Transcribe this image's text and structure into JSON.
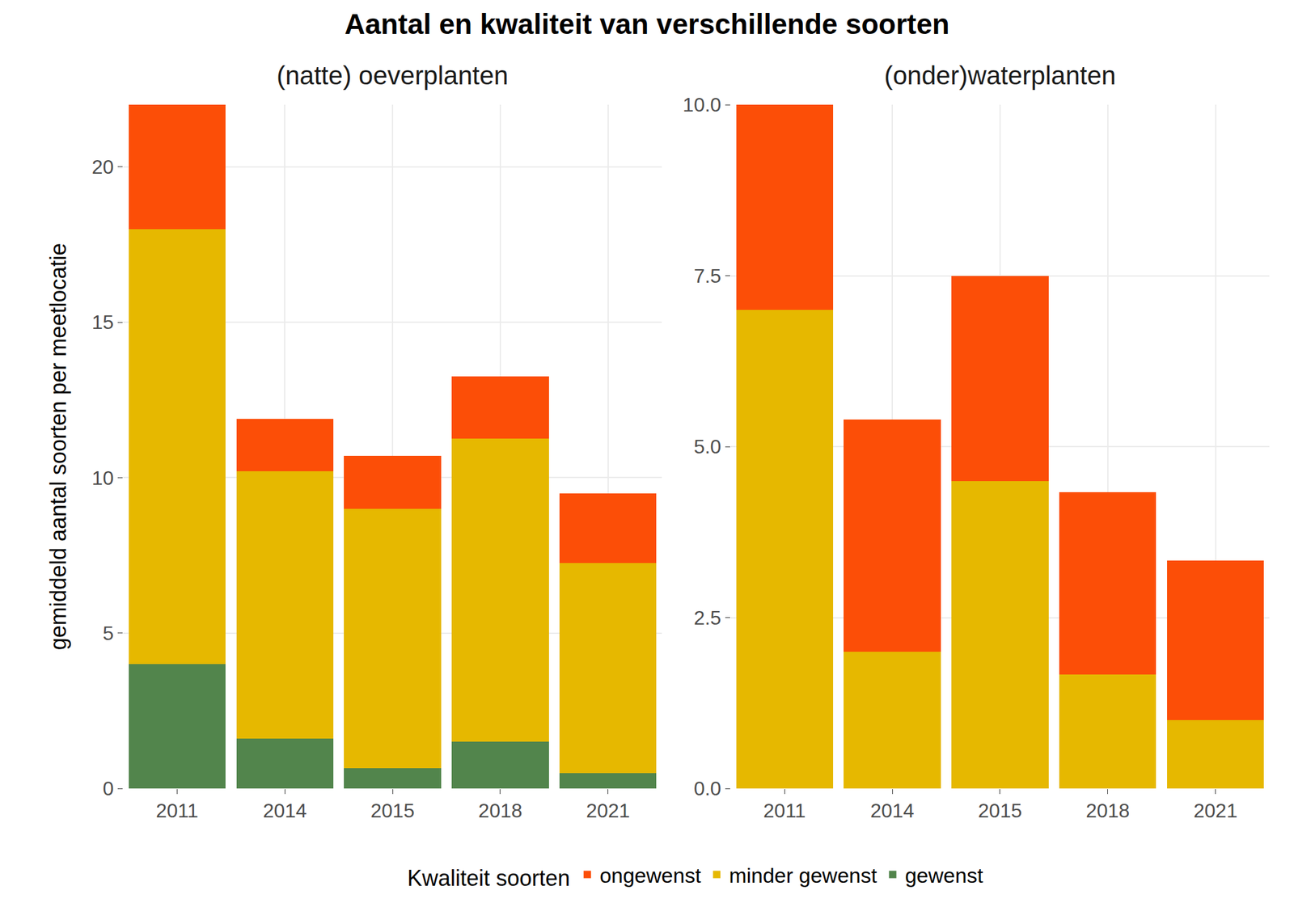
{
  "title": "Aantal en kwaliteit van verschillende soorten",
  "y_label": "gemiddeld aantal soorten per meetlocatie",
  "legend_title": "Kwaliteit soorten",
  "chart_data": [
    {
      "type": "bar",
      "title": "(natte) oeverplanten",
      "stacked": true,
      "grid": true,
      "legend": "bottom",
      "categories": [
        "2011",
        "2014",
        "2015",
        "2018",
        "2021"
      ],
      "ylim": [
        0,
        22
      ],
      "yticks": [
        0,
        5,
        10,
        15,
        20
      ],
      "series": [
        {
          "name": "gewenst",
          "color": "#52854c",
          "values": [
            4,
            1.6,
            0.65,
            1.5,
            0.5
          ]
        },
        {
          "name": "minder gewenst",
          "color": "#e6b800",
          "values": [
            14,
            8.6,
            8.35,
            9.75,
            6.75
          ]
        },
        {
          "name": "ongewenst",
          "color": "#fc4e07",
          "values": [
            4,
            1.7,
            1.7,
            2.0,
            2.25
          ]
        }
      ]
    },
    {
      "type": "bar",
      "title": "(onder)waterplanten",
      "stacked": true,
      "grid": true,
      "legend": "bottom",
      "categories": [
        "2011",
        "2014",
        "2015",
        "2018",
        "2021"
      ],
      "ylim": [
        0,
        10
      ],
      "yticks": [
        {
          "value": 0,
          "label": "0.0"
        },
        2.5,
        {
          "value": 5,
          "label": "5.0"
        },
        7.5,
        {
          "value": 10,
          "label": "10.0"
        }
      ],
      "series": [
        {
          "name": "gewenst",
          "color": "#52854c",
          "values": [
            0,
            0,
            0,
            0,
            0
          ]
        },
        {
          "name": "minder gewenst",
          "color": "#e6b800",
          "values": [
            7,
            2,
            4.5,
            1.67,
            1
          ]
        },
        {
          "name": "ongewenst",
          "color": "#fc4e07",
          "values": [
            3,
            3.4,
            3,
            2.66,
            2.33
          ]
        }
      ]
    }
  ]
}
